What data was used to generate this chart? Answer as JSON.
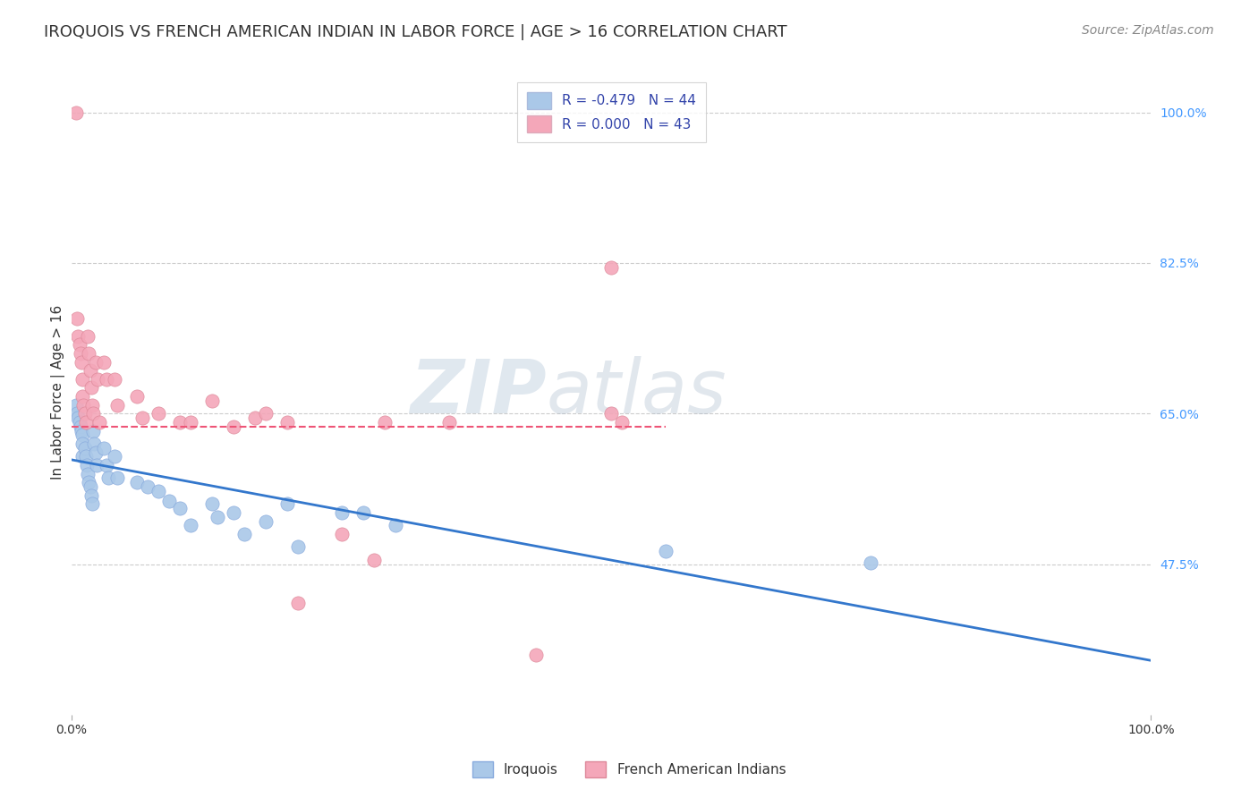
{
  "title": "IROQUOIS VS FRENCH AMERICAN INDIAN IN LABOR FORCE | AGE > 16 CORRELATION CHART",
  "source": "Source: ZipAtlas.com",
  "ylabel": "In Labor Force | Age > 16",
  "xlim": [
    0.0,
    1.0
  ],
  "ylim": [
    0.3,
    1.05
  ],
  "xtick_labels": [
    "0.0%",
    "100.0%"
  ],
  "ytick_labels": [
    "47.5%",
    "65.0%",
    "82.5%",
    "100.0%"
  ],
  "ytick_positions": [
    0.475,
    0.65,
    0.825,
    1.0
  ],
  "grid_color": "#cccccc",
  "watermark_zip": "ZIP",
  "watermark_atlas": "atlas",
  "iroquois_color": "#aac8e8",
  "french_color": "#f4a7b9",
  "iroquois_R": -0.479,
  "iroquois_N": 44,
  "french_R": 0.0,
  "french_N": 43,
  "iroquois_line_color": "#3377cc",
  "french_line_color": "#ee5577",
  "legend_label_iroquois": "Iroquois",
  "legend_label_french": "French American Indians",
  "iroquois_x": [
    0.004,
    0.005,
    0.006,
    0.007,
    0.008,
    0.009,
    0.01,
    0.01,
    0.01,
    0.012,
    0.013,
    0.014,
    0.015,
    0.016,
    0.017,
    0.018,
    0.019,
    0.02,
    0.021,
    0.022,
    0.023,
    0.03,
    0.032,
    0.034,
    0.04,
    0.042,
    0.06,
    0.07,
    0.08,
    0.09,
    0.1,
    0.11,
    0.13,
    0.135,
    0.15,
    0.16,
    0.18,
    0.2,
    0.21,
    0.25,
    0.27,
    0.3,
    0.55,
    0.74
  ],
  "iroquois_y": [
    0.66,
    0.65,
    0.645,
    0.64,
    0.635,
    0.63,
    0.625,
    0.615,
    0.6,
    0.61,
    0.6,
    0.59,
    0.58,
    0.57,
    0.565,
    0.555,
    0.545,
    0.63,
    0.615,
    0.605,
    0.59,
    0.61,
    0.59,
    0.575,
    0.6,
    0.575,
    0.57,
    0.565,
    0.56,
    0.548,
    0.54,
    0.52,
    0.545,
    0.53,
    0.535,
    0.51,
    0.525,
    0.545,
    0.495,
    0.535,
    0.535,
    0.52,
    0.49,
    0.477
  ],
  "french_x": [
    0.004,
    0.005,
    0.006,
    0.007,
    0.008,
    0.009,
    0.01,
    0.01,
    0.011,
    0.012,
    0.013,
    0.015,
    0.016,
    0.017,
    0.018,
    0.019,
    0.02,
    0.022,
    0.024,
    0.026,
    0.03,
    0.032,
    0.04,
    0.042,
    0.06,
    0.065,
    0.08,
    0.1,
    0.11,
    0.13,
    0.15,
    0.17,
    0.18,
    0.2,
    0.21,
    0.25,
    0.28,
    0.29,
    0.35,
    0.43,
    0.5,
    0.51,
    0.5
  ],
  "french_y": [
    1.0,
    0.76,
    0.74,
    0.73,
    0.72,
    0.71,
    0.69,
    0.67,
    0.66,
    0.65,
    0.64,
    0.74,
    0.72,
    0.7,
    0.68,
    0.66,
    0.65,
    0.71,
    0.69,
    0.64,
    0.71,
    0.69,
    0.69,
    0.66,
    0.67,
    0.645,
    0.65,
    0.64,
    0.64,
    0.665,
    0.635,
    0.645,
    0.65,
    0.64,
    0.43,
    0.51,
    0.48,
    0.64,
    0.64,
    0.37,
    0.65,
    0.64,
    0.82
  ],
  "title_fontsize": 13,
  "axis_label_fontsize": 11,
  "tick_fontsize": 10,
  "source_fontsize": 10,
  "legend_fontsize": 11,
  "background_color": "#ffffff",
  "title_color": "#333333",
  "tick_color_right": "#4499ff",
  "source_color": "#888888"
}
